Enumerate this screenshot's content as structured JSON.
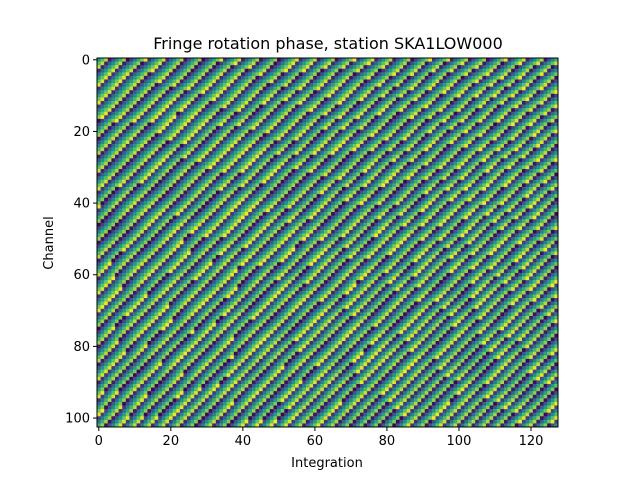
{
  "chart_data": {
    "type": "heatmap",
    "title": "Fringe rotation phase, station SKA1LOW000",
    "xlabel": "Integration",
    "ylabel": "Channel",
    "xlim": [
      -0.5,
      127.5
    ],
    "ylim": [
      102.5,
      -0.5
    ],
    "n_integrations": 128,
    "n_channels": 103,
    "x_ticks": [
      0,
      20,
      40,
      60,
      80,
      100,
      120
    ],
    "x_tick_labels": [
      "0",
      "20",
      "40",
      "60",
      "80",
      "100",
      "120"
    ],
    "y_ticks": [
      0,
      20,
      40,
      60,
      80,
      100
    ],
    "y_tick_labels": [
      "0",
      "20",
      "40",
      "60",
      "80",
      "100"
    ],
    "colormap": "viridis",
    "colormap_stops": [
      "#440154",
      "#3b528b",
      "#21918c",
      "#5ec962",
      "#fde725"
    ],
    "value_range": [
      -3.14159,
      3.14159
    ],
    "values": "phase = wrap(2π·(0.19 + 0.00045·channel)·integration + 0.55·sin(2π·channel/17.5)·sin(2π·integration/30) + 1.3·channel), wrapped to [-π, π]",
    "grid": false,
    "legend": "none"
  }
}
